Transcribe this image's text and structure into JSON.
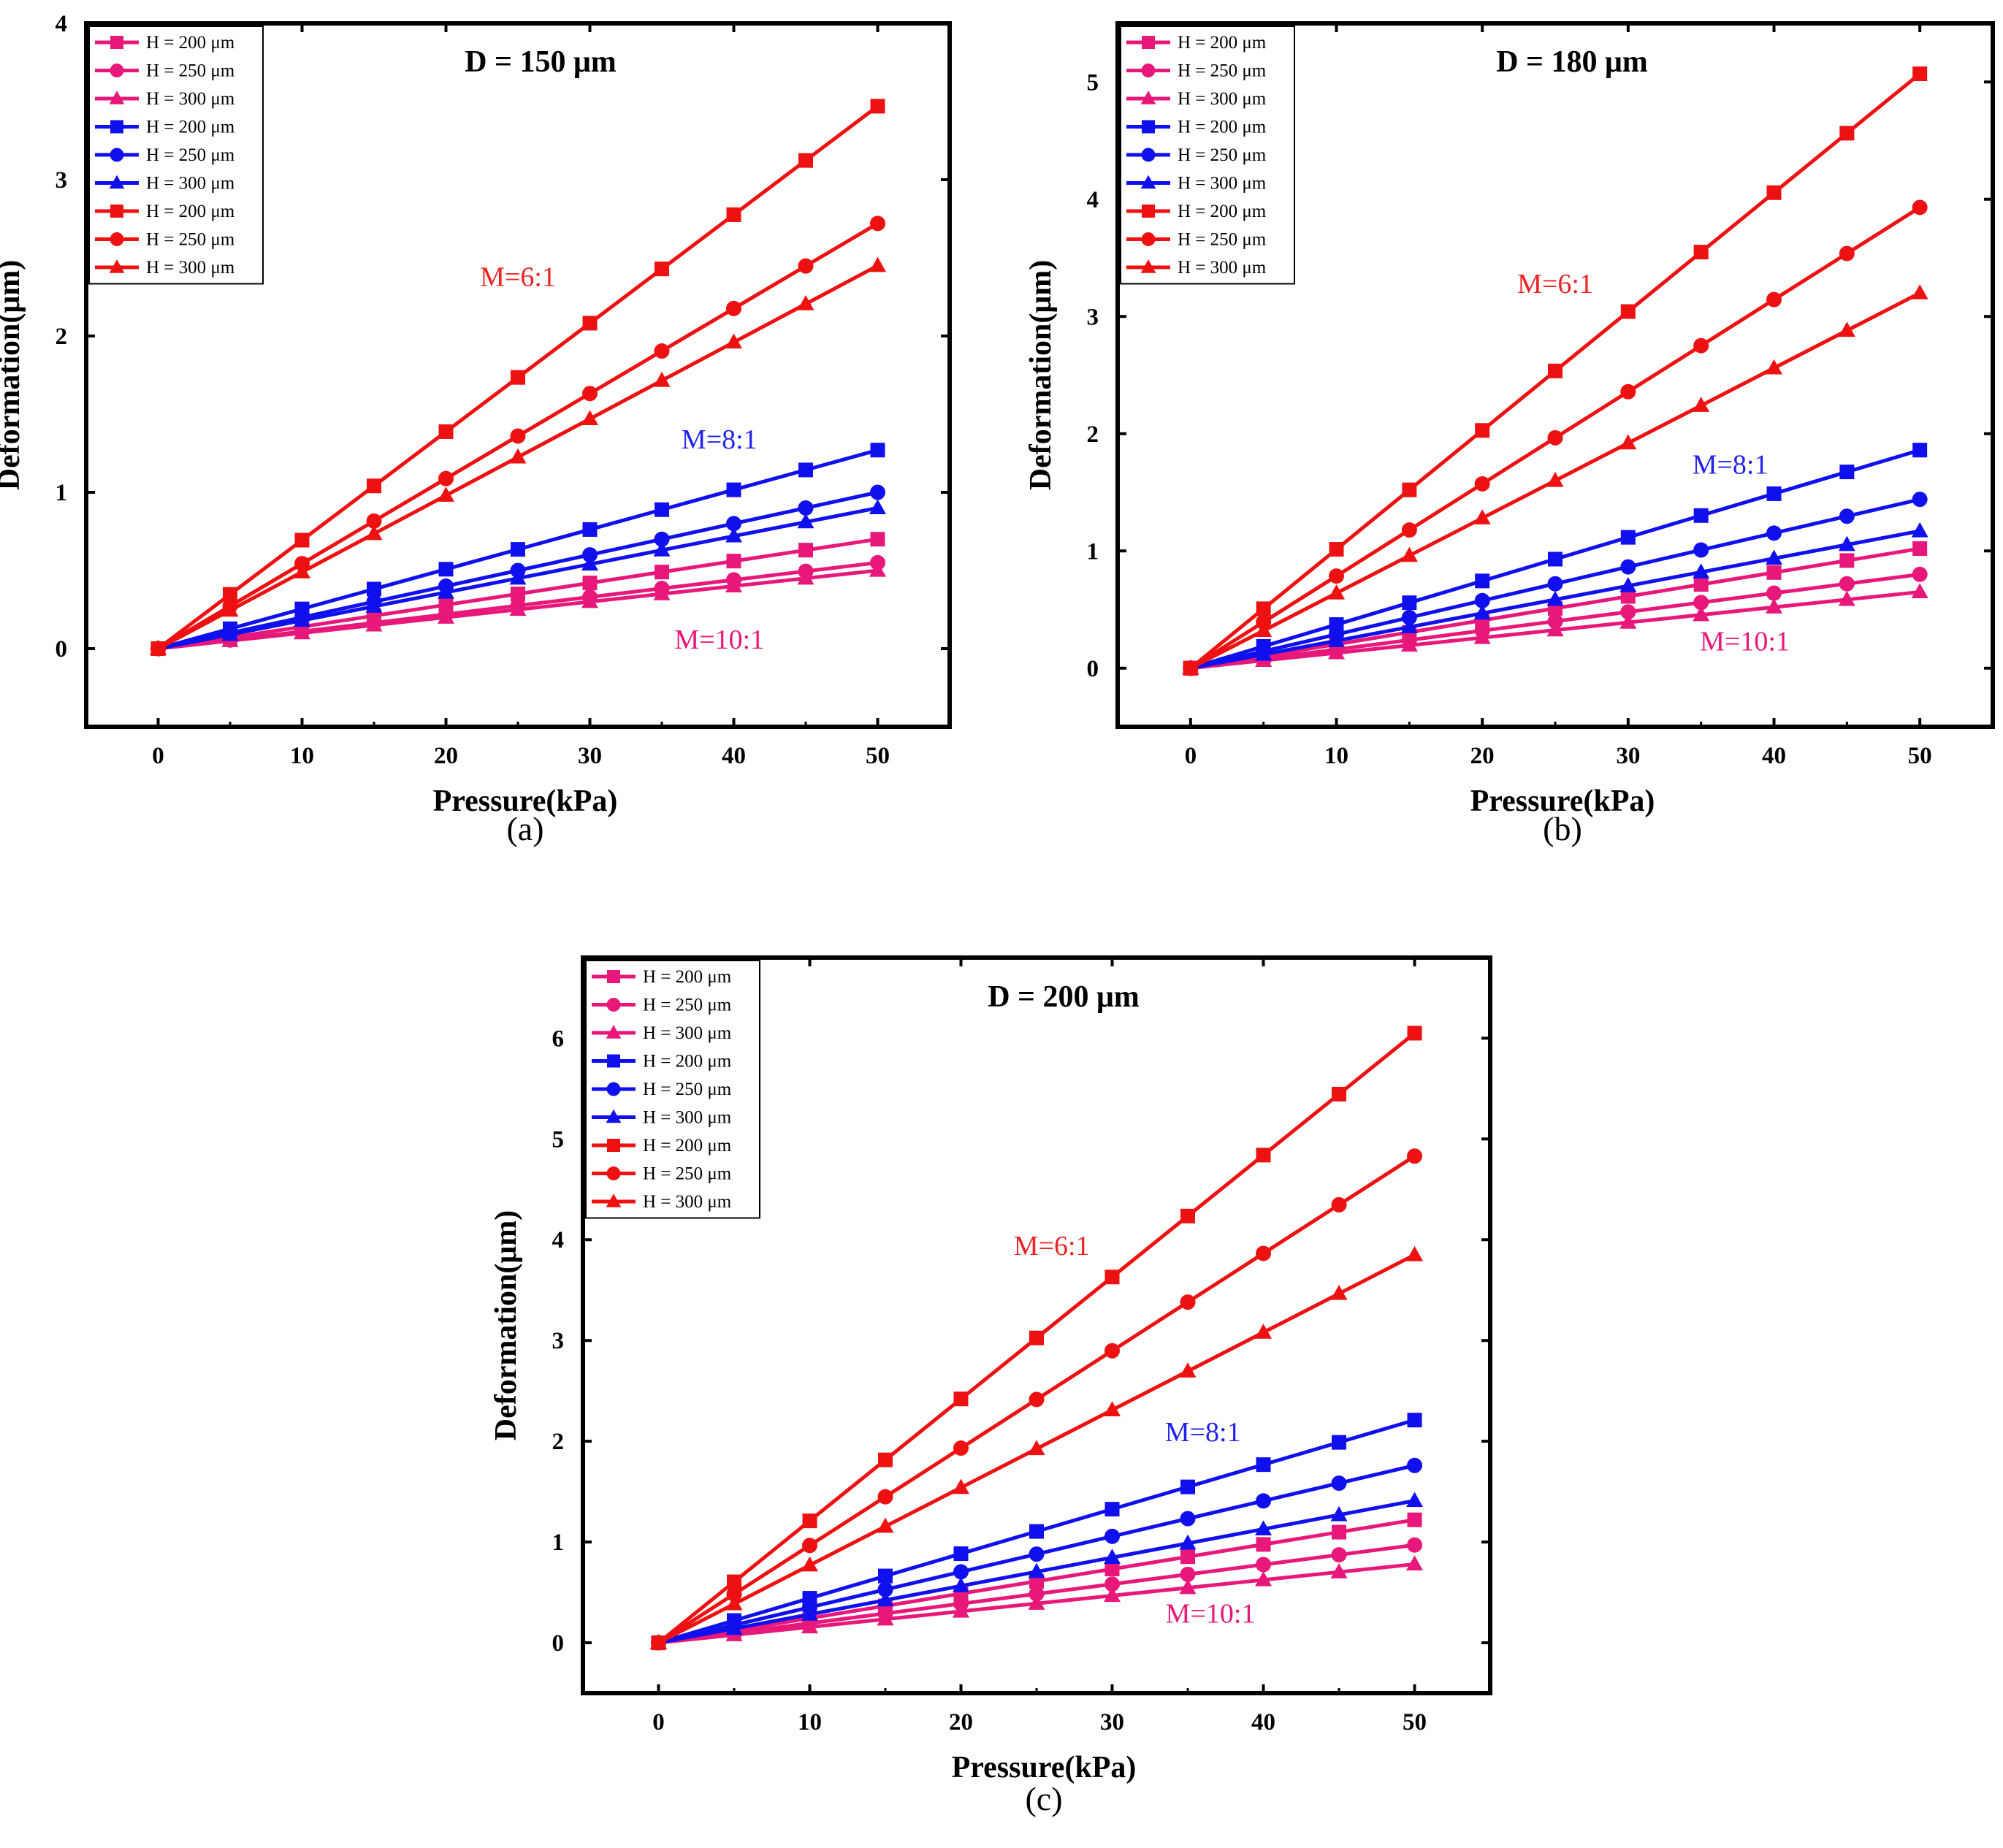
{
  "chart_data": [
    {
      "panel": "(a)",
      "type": "line",
      "title": "D = 150 μm",
      "xlabel": "Pressure(kPa)",
      "ylabel": "Deformation(μm)",
      "xlim": [
        -5,
        55
      ],
      "ylim": [
        -0.5,
        4
      ],
      "xticks": [
        "0",
        "10",
        "20",
        "30",
        "40",
        "50"
      ],
      "yticks": [
        "0",
        "1",
        "2",
        "3",
        "4"
      ],
      "legend_position": "top-left",
      "x": [
        0,
        5,
        10,
        15,
        20,
        25,
        30,
        35,
        40,
        45,
        50
      ],
      "annotations": [
        {
          "text": "M=6:1",
          "color": "#ee2222",
          "at": [
            25,
            2.32
          ]
        },
        {
          "text": "M=8:1",
          "color": "#2222ee",
          "at": [
            39,
            1.28
          ]
        },
        {
          "text": "M=10:1",
          "color": "#e8187a",
          "at": [
            39,
            0.0
          ]
        }
      ],
      "series": [
        {
          "name": "H = 200 μm",
          "group": "M=10:1",
          "color": "#e8187a",
          "marker": "square",
          "values": [
            0,
            0.07,
            0.14,
            0.21,
            0.28,
            0.35,
            0.42,
            0.49,
            0.56,
            0.63,
            0.7
          ]
        },
        {
          "name": "H = 250 μm",
          "group": "M=10:1",
          "color": "#e8187a",
          "marker": "circle",
          "values": [
            0,
            0.055,
            0.11,
            0.165,
            0.22,
            0.275,
            0.33,
            0.385,
            0.44,
            0.495,
            0.55
          ]
        },
        {
          "name": "H = 300 μm",
          "group": "M=10:1",
          "color": "#e8187a",
          "marker": "triangle",
          "values": [
            0,
            0.05,
            0.1,
            0.15,
            0.2,
            0.25,
            0.3,
            0.35,
            0.4,
            0.45,
            0.5
          ]
        },
        {
          "name": "H = 200 μm",
          "group": "M=8:1",
          "color": "#1010ee",
          "marker": "square",
          "values": [
            0,
            0.127,
            0.254,
            0.381,
            0.508,
            0.635,
            0.762,
            0.889,
            1.016,
            1.143,
            1.27
          ]
        },
        {
          "name": "H = 250 μm",
          "group": "M=8:1",
          "color": "#1010ee",
          "marker": "circle",
          "values": [
            0,
            0.1,
            0.2,
            0.3,
            0.4,
            0.5,
            0.6,
            0.7,
            0.8,
            0.9,
            1.0
          ]
        },
        {
          "name": "H = 300 μm",
          "group": "M=8:1",
          "color": "#1010ee",
          "marker": "triangle",
          "values": [
            0,
            0.09,
            0.18,
            0.27,
            0.36,
            0.45,
            0.54,
            0.63,
            0.72,
            0.81,
            0.9
          ]
        },
        {
          "name": "H = 200 μm",
          "group": "M=6:1",
          "color": "#ee1111",
          "marker": "square",
          "values": [
            0,
            0.347,
            0.694,
            1.041,
            1.388,
            1.735,
            2.082,
            2.429,
            2.776,
            3.123,
            3.47
          ]
        },
        {
          "name": "H = 250 μm",
          "group": "M=6:1",
          "color": "#ee1111",
          "marker": "circle",
          "values": [
            0,
            0.272,
            0.544,
            0.816,
            1.088,
            1.36,
            1.632,
            1.904,
            2.176,
            2.448,
            2.72
          ]
        },
        {
          "name": "H = 300 μm",
          "group": "M=6:1",
          "color": "#ee1111",
          "marker": "triangle",
          "values": [
            0,
            0.245,
            0.49,
            0.735,
            0.98,
            1.225,
            1.47,
            1.715,
            1.96,
            2.205,
            2.45
          ]
        }
      ]
    },
    {
      "panel": "(b)",
      "type": "line",
      "title": "D = 180 μm",
      "xlabel": "Pressure(kPa)",
      "ylabel": "Deformation(μm)",
      "xlim": [
        -5,
        55
      ],
      "ylim": [
        -0.5,
        5.5
      ],
      "xticks": [
        "0",
        "10",
        "20",
        "30",
        "40",
        "50"
      ],
      "yticks": [
        "0",
        "1",
        "2",
        "3",
        "4",
        "5"
      ],
      "legend_position": "top-left",
      "x": [
        0,
        5,
        10,
        15,
        20,
        25,
        30,
        35,
        40,
        45,
        50
      ],
      "annotations": [
        {
          "text": "M=6:1",
          "color": "#ee2222",
          "at": [
            25,
            3.2
          ]
        },
        {
          "text": "M=8:1",
          "color": "#2222ee",
          "at": [
            37,
            1.66
          ]
        },
        {
          "text": "M=10:1",
          "color": "#e8187a",
          "at": [
            38,
            0.15
          ]
        }
      ],
      "series": [
        {
          "name": "H = 200 μm",
          "group": "M=10:1",
          "color": "#e8187a",
          "marker": "square",
          "values": [
            0,
            0.102,
            0.204,
            0.306,
            0.408,
            0.51,
            0.612,
            0.714,
            0.816,
            0.918,
            1.02
          ]
        },
        {
          "name": "H = 250 μm",
          "group": "M=10:1",
          "color": "#e8187a",
          "marker": "circle",
          "values": [
            0,
            0.08,
            0.16,
            0.24,
            0.32,
            0.4,
            0.48,
            0.56,
            0.64,
            0.72,
            0.8
          ]
        },
        {
          "name": "H = 300 μm",
          "group": "M=10:1",
          "color": "#e8187a",
          "marker": "triangle",
          "values": [
            0,
            0.065,
            0.13,
            0.195,
            0.26,
            0.325,
            0.39,
            0.455,
            0.52,
            0.585,
            0.65
          ]
        },
        {
          "name": "H = 200 μm",
          "group": "M=8:1",
          "color": "#1010ee",
          "marker": "square",
          "values": [
            0,
            0.186,
            0.372,
            0.558,
            0.744,
            0.93,
            1.116,
            1.302,
            1.488,
            1.674,
            1.86
          ]
        },
        {
          "name": "H = 250 μm",
          "group": "M=8:1",
          "color": "#1010ee",
          "marker": "circle",
          "values": [
            0,
            0.144,
            0.288,
            0.432,
            0.576,
            0.72,
            0.864,
            1.008,
            1.152,
            1.296,
            1.44
          ]
        },
        {
          "name": "H = 300 μm",
          "group": "M=8:1",
          "color": "#1010ee",
          "marker": "triangle",
          "values": [
            0,
            0.117,
            0.234,
            0.351,
            0.468,
            0.585,
            0.702,
            0.819,
            0.936,
            1.053,
            1.17
          ]
        },
        {
          "name": "H = 200 μm",
          "group": "M=6:1",
          "color": "#ee1111",
          "marker": "square",
          "values": [
            0,
            0.507,
            1.014,
            1.521,
            2.028,
            2.535,
            3.042,
            3.549,
            4.056,
            4.563,
            5.07
          ]
        },
        {
          "name": "H = 250 μm",
          "group": "M=6:1",
          "color": "#ee1111",
          "marker": "circle",
          "values": [
            0,
            0.393,
            0.786,
            1.179,
            1.572,
            1.965,
            2.358,
            2.751,
            3.144,
            3.537,
            3.93
          ]
        },
        {
          "name": "H = 300 μm",
          "group": "M=6:1",
          "color": "#ee1111",
          "marker": "triangle",
          "values": [
            0,
            0.32,
            0.64,
            0.96,
            1.28,
            1.6,
            1.92,
            2.24,
            2.56,
            2.88,
            3.2
          ]
        }
      ]
    },
    {
      "panel": "(c)",
      "type": "line",
      "title": "D = 200 μm",
      "xlabel": "Pressure(kPa)",
      "ylabel": "Deformation(μm)",
      "xlim": [
        -5,
        55
      ],
      "ylim": [
        -0.5,
        6.8
      ],
      "xticks": [
        "0",
        "10",
        "20",
        "30",
        "40",
        "50"
      ],
      "yticks": [
        "0",
        "1",
        "2",
        "3",
        "4",
        "5",
        "6"
      ],
      "legend_position": "top-left",
      "x": [
        0,
        5,
        10,
        15,
        20,
        25,
        30,
        35,
        40,
        45,
        50
      ],
      "annotations": [
        {
          "text": "M=6:1",
          "color": "#ee2222",
          "at": [
            26,
            3.85
          ]
        },
        {
          "text": "M=8:1",
          "color": "#2222ee",
          "at": [
            36,
            2.0
          ]
        },
        {
          "text": "M=10:1",
          "color": "#e8187a",
          "at": [
            36.5,
            0.2
          ]
        }
      ],
      "series": [
        {
          "name": "H = 200 μm",
          "group": "M=10:1",
          "color": "#e8187a",
          "marker": "square",
          "values": [
            0,
            0.122,
            0.244,
            0.366,
            0.488,
            0.61,
            0.732,
            0.854,
            0.976,
            1.098,
            1.22
          ]
        },
        {
          "name": "H = 250 μm",
          "group": "M=10:1",
          "color": "#e8187a",
          "marker": "circle",
          "values": [
            0,
            0.097,
            0.194,
            0.291,
            0.388,
            0.485,
            0.582,
            0.679,
            0.776,
            0.873,
            0.97
          ]
        },
        {
          "name": "H = 300 μm",
          "group": "M=10:1",
          "color": "#e8187a",
          "marker": "triangle",
          "values": [
            0,
            0.078,
            0.156,
            0.234,
            0.312,
            0.39,
            0.468,
            0.546,
            0.624,
            0.702,
            0.78
          ]
        },
        {
          "name": "H = 200 μm",
          "group": "M=8:1",
          "color": "#1010ee",
          "marker": "square",
          "values": [
            0,
            0.221,
            0.442,
            0.663,
            0.884,
            1.105,
            1.326,
            1.547,
            1.768,
            1.989,
            2.21
          ]
        },
        {
          "name": "H = 250 μm",
          "group": "M=8:1",
          "color": "#1010ee",
          "marker": "circle",
          "values": [
            0,
            0.176,
            0.352,
            0.528,
            0.704,
            0.88,
            1.056,
            1.232,
            1.408,
            1.584,
            1.76
          ]
        },
        {
          "name": "H = 300 μm",
          "group": "M=8:1",
          "color": "#1010ee",
          "marker": "triangle",
          "values": [
            0,
            0.141,
            0.282,
            0.423,
            0.564,
            0.705,
            0.846,
            0.987,
            1.128,
            1.269,
            1.41
          ]
        },
        {
          "name": "H = 200 μm",
          "group": "M=6:1",
          "color": "#ee1111",
          "marker": "square",
          "values": [
            0,
            0.605,
            1.21,
            1.815,
            2.42,
            3.025,
            3.63,
            4.235,
            4.84,
            5.445,
            6.05
          ]
        },
        {
          "name": "H = 250 μm",
          "group": "M=6:1",
          "color": "#ee1111",
          "marker": "circle",
          "values": [
            0,
            0.483,
            0.966,
            1.449,
            1.932,
            2.415,
            2.898,
            3.381,
            3.864,
            4.347,
            4.83
          ]
        },
        {
          "name": "H = 300 μm",
          "group": "M=6:1",
          "color": "#ee1111",
          "marker": "triangle",
          "values": [
            0,
            0.385,
            0.77,
            1.155,
            1.54,
            1.925,
            2.31,
            2.695,
            3.08,
            3.465,
            3.85
          ]
        }
      ]
    }
  ]
}
